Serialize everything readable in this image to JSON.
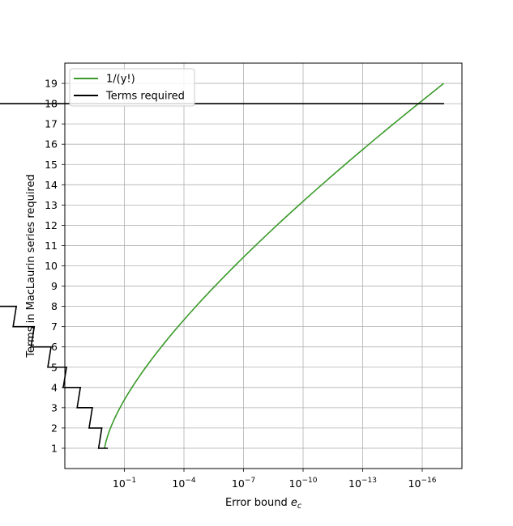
{
  "chart_data": {
    "type": "line",
    "xlabel": "Error bound e_c",
    "xlabel_main": "Error bound ",
    "xlabel_var": "e",
    "xlabel_sub": "c",
    "ylabel": "Terms in MacLaurin series required",
    "x_scale": "log",
    "x_axis_reversed": true,
    "xlim": [
      100,
      1e-18
    ],
    "ylim": [
      0,
      20
    ],
    "grid": true,
    "legend_position": "top-left",
    "x_ticks": [
      {
        "exp": -1,
        "base": "10",
        "sup": "−1"
      },
      {
        "exp": -4,
        "base": "10",
        "sup": "−4"
      },
      {
        "exp": -7,
        "base": "10",
        "sup": "−7"
      },
      {
        "exp": -10,
        "base": "10",
        "sup": "−10"
      },
      {
        "exp": -13,
        "base": "10",
        "sup": "−13"
      },
      {
        "exp": -16,
        "base": "10",
        "sup": "−16"
      }
    ],
    "y_ticks": [
      1,
      2,
      3,
      4,
      5,
      6,
      7,
      8,
      9,
      10,
      11,
      12,
      13,
      14,
      15,
      16,
      17,
      18,
      19
    ],
    "series": [
      {
        "name": "1/(y!)",
        "color": "#3a9a2a",
        "kind": "smooth",
        "y_range": [
          1,
          19
        ]
      },
      {
        "name": "Terms required",
        "color": "#000000",
        "kind": "step",
        "y_range": [
          1,
          18
        ]
      }
    ]
  }
}
